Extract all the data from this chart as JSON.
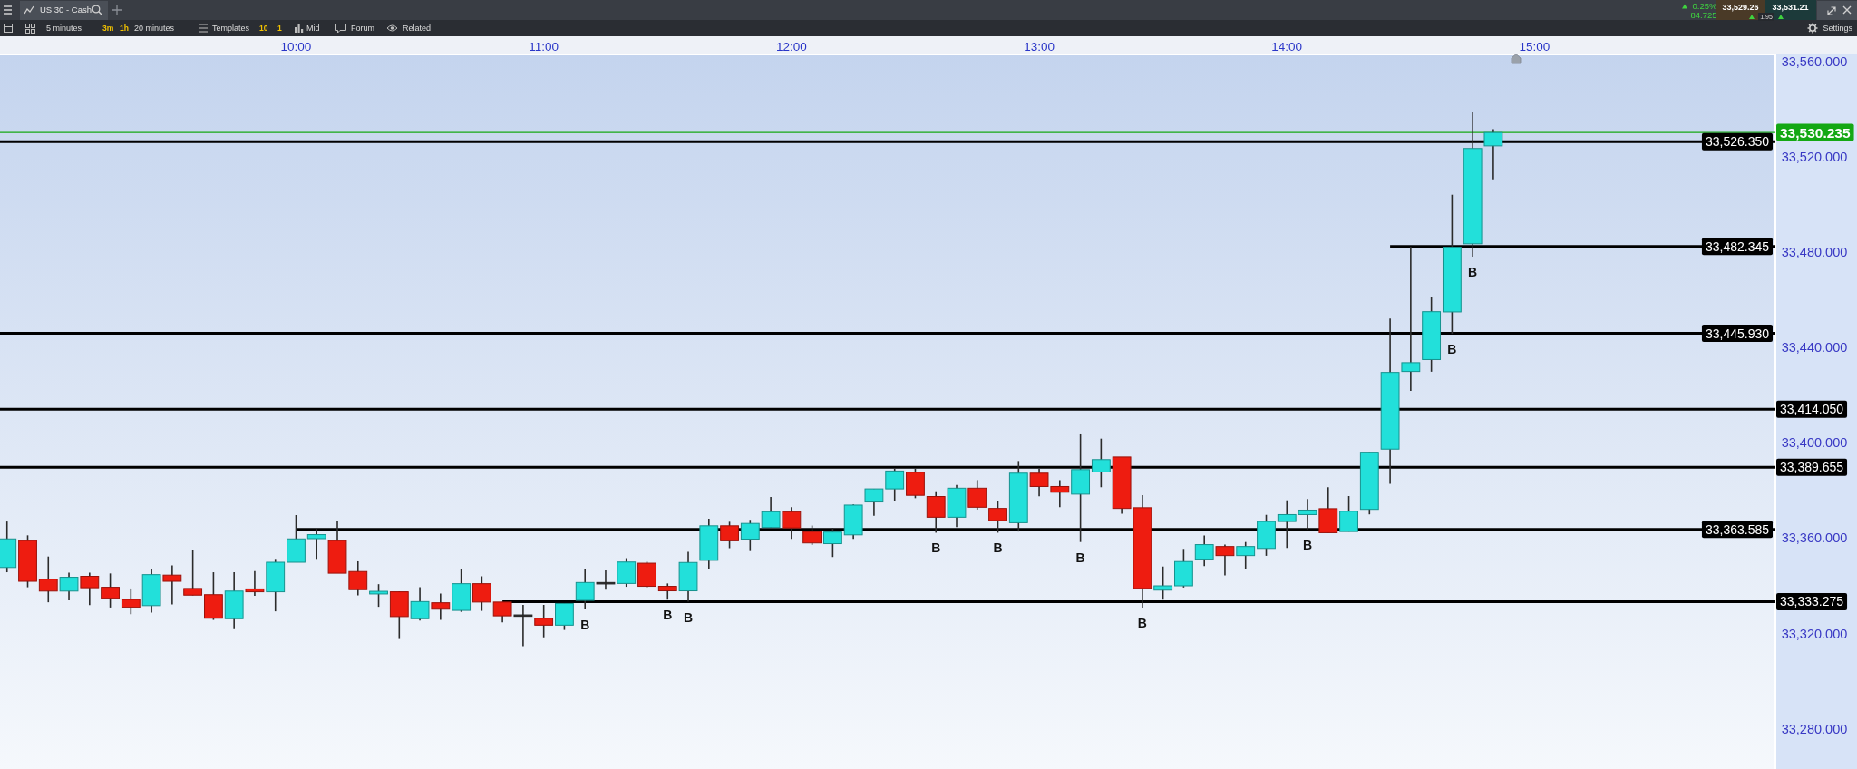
{
  "chart_data": {
    "type": "candlestick",
    "title": "US 30 - Cash",
    "x": [
      8.8333,
      8.9167,
      9.0,
      9.0833,
      9.1667,
      9.25,
      9.3333,
      9.4167,
      9.5,
      9.5833,
      9.6667,
      9.75,
      9.8333,
      9.9167,
      10.0,
      10.0833,
      10.1667,
      10.25,
      10.3333,
      10.4167,
      10.5,
      10.5833,
      10.6667,
      10.75,
      10.8333,
      10.9167,
      11.0,
      11.0833,
      11.1667,
      11.25,
      11.3333,
      11.4167,
      11.5,
      11.5833,
      11.6667,
      11.75,
      11.8333,
      11.9167,
      12.0,
      12.0833,
      12.1667,
      12.25,
      12.3333,
      12.4167,
      12.5,
      12.5833,
      12.6667,
      12.75,
      12.8333,
      12.9167,
      13.0,
      13.0833,
      13.1667,
      13.25,
      13.3333,
      13.4167,
      13.5,
      13.5833,
      13.6667,
      13.75,
      13.8333,
      13.9167,
      14.0,
      14.0833,
      14.1667,
      14.25,
      14.3333,
      14.4167,
      14.5,
      14.5833,
      14.6667,
      14.75,
      14.8333
    ],
    "ohlc": [
      [
        33347.6,
        33366.9,
        33345.6,
        33359.6
      ],
      [
        33358.9,
        33361.1,
        33339.3,
        33341.8
      ],
      [
        33342.7,
        33352.2,
        33333.0,
        33337.7
      ],
      [
        33337.7,
        33345.4,
        33333.8,
        33343.5
      ],
      [
        33343.9,
        33345.4,
        33331.8,
        33339.1
      ],
      [
        33339.3,
        33345.1,
        33330.8,
        33334.7
      ],
      [
        33334.2,
        33338.8,
        33328.0,
        33330.9
      ],
      [
        33331.6,
        33346.8,
        33328.7,
        33344.6
      ],
      [
        33344.4,
        33348.5,
        33332.1,
        33341.8
      ],
      [
        33338.8,
        33354.9,
        33335.9,
        33336.0
      ],
      [
        33336.2,
        33345.6,
        33325.6,
        33326.3
      ],
      [
        33326.1,
        33345.6,
        33321.7,
        33337.7
      ],
      [
        33338.6,
        33346.1,
        33335.7,
        33337.4
      ],
      [
        33337.4,
        33351.2,
        33329.2,
        33349.8
      ],
      [
        33349.8,
        33369.6,
        33349.8,
        33359.6
      ],
      [
        33359.7,
        33363.8,
        33351.2,
        33361.4
      ],
      [
        33358.9,
        33367.1,
        33345.2,
        33345.2
      ],
      [
        33345.9,
        33350.2,
        33335.9,
        33338.3
      ],
      [
        33336.5,
        33340.6,
        33331.1,
        33337.6
      ],
      [
        33337.4,
        33337.6,
        33317.6,
        33327.0
      ],
      [
        33326.1,
        33339.3,
        33325.3,
        33333.3
      ],
      [
        33332.8,
        33336.7,
        33325.6,
        33330.1
      ],
      [
        33329.6,
        33347.1,
        33329.0,
        33340.8
      ],
      [
        33340.8,
        33343.9,
        33329.4,
        33333.1
      ],
      [
        33333.1,
        33333.1,
        33324.6,
        33327.3
      ],
      [
        33327.7,
        33331.9,
        33314.6,
        33327.7
      ],
      [
        33326.3,
        33331.9,
        33318.3,
        33323.4
      ],
      [
        33323.4,
        33332.5,
        33321.4,
        33332.5
      ],
      [
        33333.8,
        33346.8,
        33330.0,
        33341.3
      ],
      [
        33341.3,
        33346.4,
        33338.3,
        33341.3
      ],
      [
        33340.9,
        33351.5,
        33339.5,
        33349.9
      ],
      [
        33349.4,
        33350.0,
        33339.2,
        33339.7
      ],
      [
        33339.7,
        33340.9,
        33334.1,
        33337.8
      ],
      [
        33337.8,
        33354.2,
        33333.2,
        33349.7
      ],
      [
        33350.6,
        33368.1,
        33346.8,
        33365.1
      ],
      [
        33365.1,
        33366.8,
        33355.7,
        33358.8
      ],
      [
        33359.5,
        33367.6,
        33354.5,
        33366.1
      ],
      [
        33364.4,
        33377.2,
        33364.4,
        33371.0
      ],
      [
        33371.0,
        33372.9,
        33359.6,
        33364.2
      ],
      [
        33362.7,
        33365.2,
        33357.1,
        33357.9
      ],
      [
        33357.6,
        33364.2,
        33352.0,
        33362.5
      ],
      [
        33361.3,
        33374.1,
        33359.6,
        33373.8
      ],
      [
        33375.1,
        33380.6,
        33369.3,
        33380.6
      ],
      [
        33380.6,
        33389.1,
        33375.5,
        33388.1
      ],
      [
        33387.6,
        33389.1,
        33376.7,
        33377.9
      ],
      [
        33377.4,
        33379.6,
        33362.2,
        33368.7
      ],
      [
        33368.7,
        33382.3,
        33364.6,
        33380.9
      ],
      [
        33380.9,
        33384.3,
        33371.9,
        33372.9
      ],
      [
        33372.4,
        33375.5,
        33362.2,
        33367.3
      ],
      [
        33366.4,
        33392.3,
        33362.7,
        33387.2
      ],
      [
        33387.2,
        33389.0,
        33377.5,
        33381.6
      ],
      [
        33381.6,
        33384.3,
        33372.9,
        33379.2
      ],
      [
        33378.4,
        33403.5,
        33358.3,
        33388.7
      ],
      [
        33387.7,
        33401.7,
        33381.3,
        33392.9
      ],
      [
        33394.0,
        33394.0,
        33370.2,
        33372.4
      ],
      [
        33372.7,
        33378.0,
        33330.6,
        33338.8
      ],
      [
        33338.1,
        33348.0,
        33334.1,
        33339.9
      ],
      [
        33339.9,
        33355.4,
        33339.2,
        33350.1
      ],
      [
        33351.1,
        33361.0,
        33348.2,
        33357.2
      ],
      [
        33356.4,
        33357.2,
        33344.3,
        33352.6
      ],
      [
        33352.6,
        33358.3,
        33346.8,
        33356.4
      ],
      [
        33355.6,
        33369.7,
        33352.5,
        33366.9
      ],
      [
        33366.9,
        33375.8,
        33355.8,
        33369.8
      ],
      [
        33369.8,
        33376.4,
        33363.5,
        33371.7
      ],
      [
        33372.3,
        33381.3,
        33362.2,
        33362.2
      ],
      [
        33362.7,
        33377.6,
        33362.7,
        33371.2
      ],
      [
        33372.0,
        33396.0,
        33369.9,
        33396.0
      ],
      [
        33397.3,
        33452.1,
        33382.7,
        33429.5
      ],
      [
        33429.9,
        33482.3,
        33421.8,
        33433.6
      ],
      [
        33434.9,
        33461.3,
        33429.8,
        33455.0
      ],
      [
        33454.9,
        33504.1,
        33445.7,
        33482.1
      ],
      [
        33483.5,
        33538.6,
        33478.1,
        33523.5
      ],
      [
        33524.6,
        33531.6,
        33510.6,
        33530.2
      ]
    ],
    "colors": [
      "#22e0da",
      "#ee1c10",
      "#ee1c10",
      "#22e0da",
      "#ee1c10",
      "#ee1c10",
      "#ee1c10",
      "#22e0da",
      "#ee1c10",
      "#ee1c10",
      "#ee1c10",
      "#22e0da",
      "#ee1c10",
      "#22e0da",
      "#22e0da",
      "#22e0da",
      "#ee1c10",
      "#ee1c10",
      "#22e0da",
      "#ee1c10",
      "#22e0da",
      "#ee1c10",
      "#22e0da",
      "#ee1c10",
      "#ee1c10",
      "#333333",
      "#ee1c10",
      "#22e0da",
      "#22e0da",
      "#333333",
      "#22e0da",
      "#ee1c10",
      "#ee1c10",
      "#22e0da",
      "#22e0da",
      "#ee1c10",
      "#22e0da",
      "#22e0da",
      "#ee1c10",
      "#ee1c10",
      "#22e0da",
      "#22e0da",
      "#22e0da",
      "#22e0da",
      "#ee1c10",
      "#ee1c10",
      "#22e0da",
      "#ee1c10",
      "#ee1c10",
      "#22e0da",
      "#ee1c10",
      "#ee1c10",
      "#22e0da",
      "#22e0da",
      "#ee1c10",
      "#ee1c10",
      "#22e0da",
      "#22e0da",
      "#22e0da",
      "#ee1c10",
      "#22e0da",
      "#22e0da",
      "#22e0da",
      "#22e0da",
      "#ee1c10",
      "#22e0da",
      "#22e0da",
      "#22e0da",
      "#22e0da",
      "#22e0da",
      "#22e0da",
      "#22e0da",
      "#22e0da"
    ],
    "series": [
      {
        "type": "line",
        "name": "33,482.345",
        "color": "#000000",
        "x": [
          14.4167,
          15.972
        ],
        "values": [
          33482.345,
          33482.345
        ]
      },
      {
        "type": "line",
        "name": "33,363.585",
        "color": "#000000",
        "x": [
          10.0,
          15.972
        ],
        "values": [
          33363.585,
          33363.585
        ]
      },
      {
        "type": "line",
        "name": "33,333.275",
        "color": "#000000",
        "x": [
          10.8333,
          15.972
        ],
        "values": [
          33333.275,
          33333.275
        ]
      }
    ],
    "ref_lines": [
      {
        "axis": "y",
        "value": 33530.235,
        "label": "33,530.235",
        "color": "#14a814"
      },
      {
        "axis": "y",
        "value": 33526.35,
        "label": "33,526.350"
      },
      {
        "axis": "y",
        "value": 33445.93,
        "label": "33,445.930"
      },
      {
        "axis": "y",
        "value": 33414.05,
        "label": "33,414.050"
      },
      {
        "axis": "y",
        "value": 33389.655,
        "label": "33,389.655"
      }
    ],
    "xlim": [
      8.805,
      15.972
    ],
    "xticks": [
      {
        "value": 10,
        "label": "10:00"
      },
      {
        "value": 11,
        "label": "11:00"
      },
      {
        "value": 12,
        "label": "12:00"
      },
      {
        "value": 13,
        "label": "13:00"
      },
      {
        "value": 14,
        "label": "14:00"
      },
      {
        "value": 15,
        "label": "15:00"
      }
    ],
    "ylim": [
      33263,
      33563
    ],
    "yticks": [
      {
        "value": 33280,
        "label": "33,280.000"
      },
      {
        "value": 33320,
        "label": "33,320.000"
      },
      {
        "value": 33360,
        "label": "33,360.000"
      },
      {
        "value": 33400,
        "label": "33,400.000"
      },
      {
        "value": 33440,
        "label": "33,440.000"
      },
      {
        "value": 33480,
        "label": "33,480.000"
      },
      {
        "value": 33520,
        "label": "33,520.000"
      },
      {
        "value": 33560,
        "label": "33,560.000"
      }
    ],
    "annotations": [
      "5 minutes",
      "3m",
      "1h",
      "20 minutes",
      "Templates",
      "10",
      "1",
      "Mid",
      "Forum",
      "Related",
      "Settings",
      "0.25%",
      "84.725",
      "33,529.26",
      "33,531.21",
      "1.95",
      {
        "text": "B",
        "x": 11.1667,
        "y": 33330.0
      },
      {
        "text": "B",
        "x": 11.5,
        "y": 33334.1
      },
      {
        "text": "B",
        "x": 11.5833,
        "y": 33333.2
      },
      {
        "text": "B",
        "x": 12.5833,
        "y": 33362.2
      },
      {
        "text": "B",
        "x": 12.8333,
        "y": 33362.2
      },
      {
        "text": "B",
        "x": 13.1667,
        "y": 33358.3
      },
      {
        "text": "B",
        "x": 13.4167,
        "y": 33330.6
      },
      {
        "text": "B",
        "x": 14.0833,
        "y": 33363.5
      },
      {
        "text": "B",
        "x": 14.6667,
        "y": 33445.7
      },
      {
        "text": "B",
        "x": 14.75,
        "y": 33478.1
      }
    ]
  }
}
